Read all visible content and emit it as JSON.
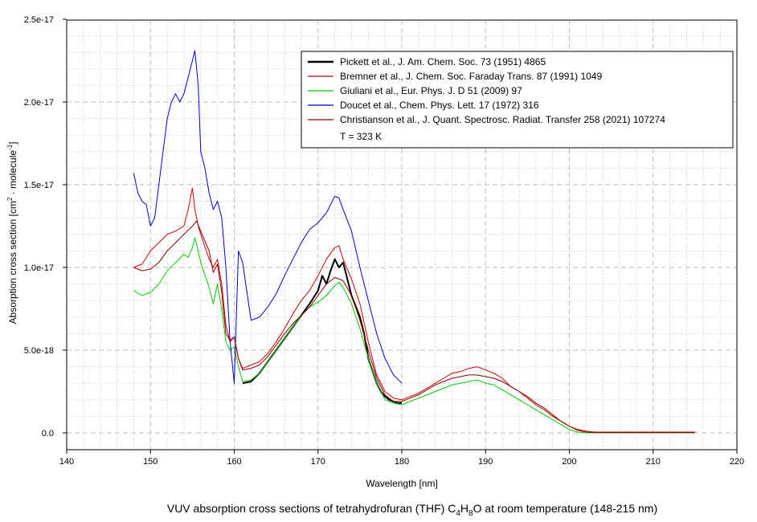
{
  "chart_data": {
    "type": "line",
    "xlabel": "Wavelength [nm]",
    "ylabel": {
      "main": "Absorption cross section [cm",
      "sup1": "2",
      "mid": " · molecule",
      "sup2": "-1",
      "end": "]"
    },
    "xlim": [
      140,
      220
    ],
    "ylim": [
      -1e-18,
      2.5e-17
    ],
    "x_ticks": [
      {
        "value": 140,
        "label": "140"
      },
      {
        "value": 150,
        "label": "150"
      },
      {
        "value": 160,
        "label": "160"
      },
      {
        "value": 170,
        "label": "170"
      },
      {
        "value": 180,
        "label": "180"
      },
      {
        "value": 190,
        "label": "190"
      },
      {
        "value": 200,
        "label": "200"
      },
      {
        "value": 210,
        "label": "210"
      },
      {
        "value": 220,
        "label": "220"
      }
    ],
    "y_ticks": [
      {
        "value": 0,
        "label": "0.0"
      },
      {
        "value": 5e-18,
        "label": "5.0e-18"
      },
      {
        "value": 1e-17,
        "label": "1.0e-17"
      },
      {
        "value": 1.5e-17,
        "label": "1.5e-17"
      },
      {
        "value": 2e-17,
        "label": "2.0e-17"
      },
      {
        "value": 2.5e-17,
        "label": "2.5e-17"
      }
    ],
    "grid": true,
    "legend_position": "top-right",
    "series": [
      {
        "name": "Pickett et al., J. Am. Chem. Soc. 73 (1951) 4865",
        "color": "#000000",
        "width": 2,
        "x": [
          161,
          162,
          163,
          164,
          165,
          166,
          167,
          168,
          169,
          170,
          170.5,
          171,
          171.5,
          172,
          172.5,
          173,
          173.5,
          174,
          175,
          175.5,
          176,
          177,
          177.5,
          178,
          178.5,
          179,
          179.5,
          180
        ],
        "y": [
          3e-18,
          3.1e-18,
          3.6e-18,
          4.3e-18,
          5e-18,
          5.7e-18,
          6.4e-18,
          7.1e-18,
          7.8e-18,
          8.6e-18,
          9.5e-18,
          9e-18,
          9.8e-18,
          1.05e-17,
          1e-17,
          1.03e-17,
          9.3e-18,
          8.3e-18,
          7e-18,
          6e-18,
          4.5e-18,
          3e-18,
          2.5e-18,
          2.2e-18,
          2e-18,
          1.9e-18,
          1.8e-18,
          1.8e-18
        ]
      },
      {
        "name": "Bremner et al., J. Chem. Soc. Faraday Trans. 87 (1991) 1049",
        "color": "#cc0000",
        "width": 1,
        "x": [
          148,
          149,
          150,
          151,
          152,
          153,
          154,
          154.5,
          155,
          155.3,
          155.7,
          156,
          157,
          157.5,
          158,
          158.5,
          159,
          159.5,
          160,
          160.5,
          161,
          162,
          163,
          164,
          165,
          166,
          167,
          168,
          169,
          170,
          171,
          172,
          172.5,
          173,
          174,
          175,
          176,
          177,
          178,
          179,
          180,
          181,
          182,
          183,
          184,
          185,
          186,
          187,
          188,
          189,
          190,
          191,
          192,
          193,
          194,
          195,
          196,
          197,
          198,
          199,
          200,
          201,
          202,
          203,
          205,
          210,
          215
        ],
        "y": [
          1e-17,
          1.02e-17,
          1.1e-17,
          1.15e-17,
          1.2e-17,
          1.22e-17,
          1.25e-17,
          1.35e-17,
          1.48e-17,
          1.35e-17,
          1.25e-17,
          1.2e-17,
          1.05e-17,
          1e-17,
          1.05e-17,
          9e-18,
          6.5e-18,
          5.5e-18,
          5.8e-18,
          4.5e-18,
          3.9e-18,
          4.1e-18,
          4.3e-18,
          4.8e-18,
          5.5e-18,
          6.3e-18,
          7.2e-18,
          8e-18,
          8.6e-18,
          9.5e-18,
          1.05e-17,
          1.12e-17,
          1.13e-17,
          1.05e-17,
          9.3e-18,
          7.8e-18,
          5.5e-18,
          3.5e-18,
          2.5e-18,
          2.1e-18,
          2e-18,
          2.2e-18,
          2.4e-18,
          2.7e-18,
          3e-18,
          3.3e-18,
          3.6e-18,
          3.7e-18,
          3.9e-18,
          4e-18,
          3.8e-18,
          3.6e-18,
          3.3e-18,
          2.8e-18,
          2.5e-18,
          2.1e-18,
          1.7e-18,
          1.4e-18,
          1e-18,
          7e-19,
          4e-19,
          2e-19,
          1e-19,
          5e-20,
          5e-20,
          5e-20,
          5e-20
        ]
      },
      {
        "name": "Giuliani et al., Eur. Phys. J. D 51 (2009) 97",
        "color": "#00cc00",
        "width": 1,
        "x": [
          148,
          149,
          150,
          151,
          152,
          153,
          154,
          154.5,
          155,
          155.3,
          155.7,
          156,
          157,
          157.5,
          158,
          158.5,
          159,
          159.5,
          160,
          160.5,
          161,
          162,
          163,
          164,
          165,
          166,
          167,
          168,
          169,
          170,
          171,
          172,
          172.5,
          173,
          174,
          175,
          176,
          177,
          178,
          179,
          180,
          181,
          182,
          183,
          184,
          185,
          186,
          187,
          188,
          189,
          190,
          191,
          192,
          193,
          194,
          195,
          196,
          197,
          198,
          199,
          200,
          201,
          202,
          203,
          205,
          210,
          215
        ],
        "y": [
          8.6e-18,
          8.3e-18,
          8.5e-18,
          9e-18,
          9.8e-18,
          1.03e-17,
          1.08e-17,
          1.06e-17,
          1.12e-17,
          1.18e-17,
          1.1e-17,
          1.03e-17,
          8.8e-18,
          7.8e-18,
          9e-18,
          7.5e-18,
          5.5e-18,
          5e-18,
          5.2e-18,
          4e-18,
          3.1e-18,
          3.2e-18,
          3.6e-18,
          4.3e-18,
          5e-18,
          5.7e-18,
          6.4e-18,
          7.1e-18,
          7.6e-18,
          7.9e-18,
          8.3e-18,
          8.9e-18,
          9.1e-18,
          8.8e-18,
          7.8e-18,
          6.3e-18,
          4.5e-18,
          3e-18,
          2e-18,
          1.8e-18,
          1.7e-18,
          1.9e-18,
          2.1e-18,
          2.3e-18,
          2.5e-18,
          2.7e-18,
          2.9e-18,
          3e-18,
          3.1e-18,
          3.2e-18,
          3e-18,
          2.9e-18,
          2.6e-18,
          2.3e-18,
          2e-18,
          1.7e-18,
          1.4e-18,
          1.1e-18,
          8e-19,
          5e-19,
          2e-19,
          5e-20,
          0,
          0,
          0,
          0,
          0
        ]
      },
      {
        "name": "Doucet et al., Chem. Phys. Lett. 17 (1972) 316",
        "color": "#0000cc",
        "width": 1,
        "x": [
          148,
          148.5,
          149,
          149.5,
          150,
          150.5,
          151,
          151.5,
          152,
          152.5,
          153,
          153.5,
          154,
          154.5,
          155,
          155.3,
          155.7,
          156,
          156.5,
          157,
          157.5,
          158,
          158.5,
          159,
          159.5,
          160,
          160.5,
          161,
          162,
          163,
          164,
          165,
          166,
          167,
          168,
          169,
          170,
          171,
          171.5,
          172,
          172.5,
          173,
          174,
          175,
          176,
          177,
          178,
          179,
          180
        ],
        "y": [
          1.57e-17,
          1.45e-17,
          1.4e-17,
          1.38e-17,
          1.25e-17,
          1.3e-17,
          1.5e-17,
          1.7e-17,
          1.9e-17,
          2e-17,
          2.05e-17,
          2e-17,
          2.05e-17,
          2.15e-17,
          2.25e-17,
          2.31e-17,
          2.1e-17,
          1.7e-17,
          1.6e-17,
          1.45e-17,
          1.35e-17,
          1.4e-17,
          1.3e-17,
          1e-17,
          5.5e-18,
          3e-18,
          1.1e-17,
          1.03e-17,
          6.8e-18,
          7e-18,
          7.6e-18,
          8.4e-18,
          9.5e-18,
          1.05e-17,
          1.15e-17,
          1.23e-17,
          1.27e-17,
          1.33e-17,
          1.38e-17,
          1.43e-17,
          1.42e-17,
          1.35e-17,
          1.22e-17,
          1e-17,
          8e-18,
          6e-18,
          4.5e-18,
          3.5e-18,
          3e-18
        ]
      },
      {
        "name": "Christianson et al., J. Quant. Spectrosc. Radiat. Transfer 258 (2021) 107274",
        "note": "T = 323 K",
        "color": "#8b0000",
        "width": 1,
        "x": [
          148,
          149,
          150,
          151,
          152,
          153,
          154,
          155,
          155.5,
          156,
          157,
          157.5,
          158,
          158.5,
          159,
          159.5,
          160,
          160.5,
          161,
          162,
          163,
          164,
          165,
          166,
          167,
          168,
          169,
          170,
          171,
          172,
          173,
          174,
          175,
          176,
          177,
          178,
          179,
          180,
          181,
          182,
          183,
          184,
          185,
          186,
          187,
          188,
          189,
          190,
          191,
          192,
          193,
          194,
          195,
          196,
          197,
          198,
          199,
          200,
          201,
          202,
          203,
          205,
          210,
          215
        ],
        "y": [
          1e-17,
          9.8e-18,
          9.9e-18,
          1.03e-17,
          1.1e-17,
          1.15e-17,
          1.2e-17,
          1.25e-17,
          1.28e-17,
          1.22e-17,
          1.1e-17,
          9.7e-18,
          1.02e-17,
          8.5e-18,
          6e-18,
          5.6e-18,
          5.8e-18,
          4.5e-18,
          3.8e-18,
          3.9e-18,
          4.1e-18,
          4.6e-18,
          5.3e-18,
          6e-18,
          6.6e-18,
          7.1e-18,
          7.6e-18,
          8.3e-18,
          9e-18,
          9.4e-18,
          9.2e-18,
          8.3e-18,
          6.8e-18,
          5e-18,
          3.3e-18,
          2.3e-18,
          1.9e-18,
          1.9e-18,
          2.1e-18,
          2.3e-18,
          2.6e-18,
          2.9e-18,
          3.1e-18,
          3.3e-18,
          3.4e-18,
          3.5e-18,
          3.5e-18,
          3.4e-18,
          3.3e-18,
          3.1e-18,
          2.8e-18,
          2.5e-18,
          2.2e-18,
          1.8e-18,
          1.5e-18,
          1.1e-18,
          7e-19,
          4e-19,
          1.5e-19,
          5e-20,
          2e-20,
          2e-20,
          2e-20,
          2e-20
        ]
      }
    ]
  },
  "legend": {
    "entries": [
      "Pickett et al., J. Am. Chem. Soc. 73 (1951) 4865",
      "Bremner et al., J. Chem. Soc. Faraday Trans. 87 (1991) 1049",
      "Giuliani et al., Eur. Phys. J. D 51 (2009) 97",
      "Doucet et al., Chem. Phys. Lett. 17 (1972) 316",
      "Christianson et al., J. Quant. Spectrosc. Radiat. Transfer 258 (2021) 107274"
    ],
    "extra_line": "T = 323 K"
  },
  "caption": {
    "prefix": "VUV absorption cross sections of tetrahydrofuran (THF) C",
    "sub1": "4",
    "mid1": "H",
    "sub2": "8",
    "suffix": "O at room temperature (148-215 nm)"
  }
}
